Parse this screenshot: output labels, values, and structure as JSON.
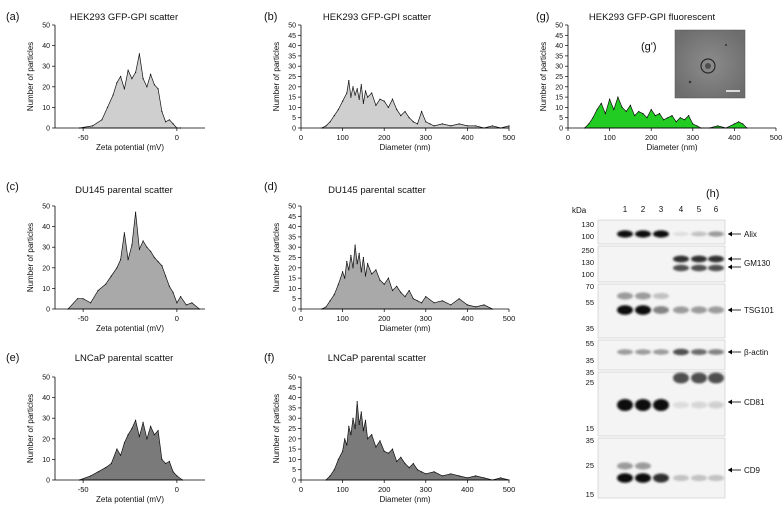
{
  "colors": {
    "light": "#cfcfcf",
    "medium": "#a9a9a9",
    "dark": "#7a7a7a",
    "green": "#22cc22",
    "line": "#111111"
  },
  "panels": {
    "a": {
      "letter": "(a)",
      "title": "HEK293 GFP-GPI scatter"
    },
    "b": {
      "letter": "(b)",
      "title": "HEK293 GFP-GPI scatter"
    },
    "c": {
      "letter": "(c)",
      "title": "DU145 parental scatter"
    },
    "d": {
      "letter": "(d)",
      "title": "DU145 parental scatter"
    },
    "e": {
      "letter": "(e)",
      "title": "LNCaP parental scatter"
    },
    "f": {
      "letter": "(f)",
      "title": "LNCaP parental scatter"
    },
    "g": {
      "letter": "(g)",
      "title": "HEK293 GFP-GPI fluorescent",
      "inset_label": "(g')"
    },
    "h": {
      "letter": "(h)"
    }
  },
  "chart_data": [
    {
      "id": "a",
      "type": "area",
      "title": "HEK293 GFP-GPI scatter",
      "xlabel": "Zeta potential (mV)",
      "ylabel": "Number of particles",
      "xlim": [
        -65,
        15
      ],
      "ylim": [
        0,
        50
      ],
      "xticks": [
        -50,
        0
      ],
      "yticks": [
        0,
        10,
        20,
        30,
        40,
        50
      ],
      "x": [
        -52,
        -45,
        -40,
        -37,
        -34,
        -32,
        -30,
        -28,
        -26,
        -24,
        -22,
        -20,
        -18,
        -16,
        -14,
        -12,
        -10,
        -8,
        -6,
        -4,
        -2,
        0,
        2
      ],
      "y": [
        0,
        1,
        4,
        10,
        16,
        22,
        25,
        19,
        28,
        24,
        27,
        36,
        24,
        20,
        26,
        21,
        19,
        8,
        3,
        4,
        2,
        0,
        0
      ]
    },
    {
      "id": "b",
      "type": "area",
      "title": "HEK293 GFP-GPI scatter",
      "xlabel": "Diameter (nm)",
      "ylabel": "Number of particles",
      "xlim": [
        0,
        500
      ],
      "ylim": [
        0,
        50
      ],
      "xticks": [
        0,
        100,
        200,
        300,
        400,
        500
      ],
      "yticks": [
        0,
        5,
        10,
        15,
        20,
        25,
        30,
        35,
        40,
        45,
        50
      ],
      "x": [
        50,
        60,
        70,
        80,
        90,
        100,
        110,
        115,
        120,
        125,
        130,
        135,
        140,
        145,
        150,
        155,
        160,
        170,
        180,
        190,
        200,
        210,
        220,
        230,
        240,
        250,
        260,
        270,
        280,
        290,
        300,
        310,
        320,
        340,
        360,
        380,
        400,
        420,
        440,
        460,
        480,
        500
      ],
      "y": [
        0,
        1,
        3,
        6,
        9,
        13,
        17,
        23,
        15,
        20,
        16,
        19,
        14,
        21,
        12,
        18,
        15,
        17,
        11,
        14,
        13,
        10,
        14,
        9,
        6,
        8,
        5,
        3,
        2,
        8,
        3,
        2,
        1,
        2,
        1,
        2,
        1,
        1,
        0,
        1,
        0,
        1
      ]
    },
    {
      "id": "c",
      "type": "area",
      "title": "DU145 parental scatter",
      "xlabel": "Zeta potential (mV)",
      "ylabel": "Number of particles",
      "xlim": [
        -65,
        15
      ],
      "ylim": [
        0,
        50
      ],
      "xticks": [
        -50,
        0
      ],
      "yticks": [
        0,
        10,
        20,
        30,
        40,
        50
      ],
      "x": [
        -58,
        -53,
        -50,
        -46,
        -42,
        -38,
        -35,
        -32,
        -30,
        -28,
        -26,
        -24,
        -22,
        -20,
        -18,
        -16,
        -14,
        -12,
        -10,
        -8,
        -6,
        -4,
        -2,
        0,
        2,
        5,
        8,
        12
      ],
      "y": [
        0,
        5,
        5,
        3,
        9,
        12,
        16,
        20,
        24,
        37,
        24,
        31,
        47,
        29,
        33,
        30,
        28,
        25,
        23,
        21,
        16,
        11,
        8,
        3,
        6,
        2,
        3,
        0
      ]
    },
    {
      "id": "d",
      "type": "area",
      "title": "DU145 parental scatter",
      "xlabel": "Diameter (nm)",
      "ylabel": "Number of particles",
      "xlim": [
        0,
        500
      ],
      "ylim": [
        0,
        50
      ],
      "xticks": [
        0,
        100,
        200,
        300,
        400,
        500
      ],
      "yticks": [
        0,
        5,
        10,
        15,
        20,
        25,
        30,
        35,
        40,
        45,
        50
      ],
      "x": [
        50,
        60,
        70,
        80,
        90,
        100,
        105,
        110,
        115,
        120,
        125,
        130,
        135,
        140,
        145,
        150,
        155,
        160,
        170,
        180,
        190,
        200,
        210,
        220,
        230,
        240,
        250,
        260,
        270,
        280,
        290,
        300,
        320,
        340,
        360,
        380,
        400,
        420,
        440,
        460
      ],
      "y": [
        0,
        1,
        4,
        7,
        12,
        18,
        15,
        23,
        19,
        26,
        20,
        31,
        22,
        27,
        18,
        25,
        16,
        22,
        17,
        19,
        14,
        12,
        15,
        9,
        11,
        8,
        6,
        9,
        5,
        4,
        3,
        6,
        3,
        4,
        2,
        5,
        2,
        1,
        2,
        0
      ]
    },
    {
      "id": "e",
      "type": "area",
      "title": "LNCaP parental scatter",
      "xlabel": "Zeta potential (mV)",
      "ylabel": "Number of particles",
      "xlim": [
        -65,
        15
      ],
      "ylim": [
        0,
        50
      ],
      "xticks": [
        -50,
        0
      ],
      "yticks": [
        0,
        10,
        20,
        30,
        40,
        50
      ],
      "x": [
        -52,
        -46,
        -42,
        -38,
        -35,
        -32,
        -30,
        -28,
        -26,
        -24,
        -22,
        -20,
        -18,
        -16,
        -14,
        -12,
        -10,
        -8,
        -6,
        -4,
        -2,
        0,
        3
      ],
      "y": [
        0,
        2,
        4,
        6,
        8,
        15,
        12,
        18,
        22,
        25,
        29,
        21,
        28,
        20,
        26,
        22,
        24,
        10,
        8,
        9,
        4,
        2,
        0
      ]
    },
    {
      "id": "f",
      "type": "area",
      "title": "LNCaP parental scatter",
      "xlabel": "Diameter (nm)",
      "ylabel": "Number of particles",
      "xlim": [
        0,
        500
      ],
      "ylim": [
        0,
        50
      ],
      "xticks": [
        0,
        100,
        200,
        300,
        400,
        500
      ],
      "yticks": [
        0,
        5,
        10,
        15,
        20,
        25,
        30,
        35,
        40,
        45,
        50
      ],
      "x": [
        60,
        70,
        80,
        90,
        100,
        105,
        110,
        115,
        120,
        125,
        130,
        135,
        140,
        145,
        150,
        155,
        160,
        170,
        180,
        190,
        200,
        210,
        220,
        230,
        240,
        250,
        260,
        270,
        280,
        290,
        300,
        320,
        340,
        360,
        380,
        400,
        420,
        440,
        460,
        480,
        500
      ],
      "y": [
        0,
        2,
        5,
        10,
        14,
        20,
        17,
        26,
        22,
        30,
        25,
        38,
        27,
        33,
        24,
        29,
        20,
        22,
        16,
        19,
        14,
        13,
        15,
        9,
        11,
        8,
        6,
        8,
        5,
        4,
        3,
        4,
        2,
        3,
        2,
        1,
        2,
        1,
        0,
        1,
        0
      ]
    },
    {
      "id": "g",
      "type": "area",
      "title": "HEK293 GFP-GPI fluorescent",
      "xlabel": "Diameter (nm)",
      "ylabel": "Number of particles",
      "xlim": [
        0,
        500
      ],
      "ylim": [
        0,
        50
      ],
      "xticks": [
        0,
        100,
        200,
        300,
        400,
        500
      ],
      "yticks": [
        0,
        5,
        10,
        15,
        20,
        25,
        30,
        35,
        40,
        45,
        50
      ],
      "x": [
        40,
        50,
        60,
        70,
        80,
        90,
        100,
        110,
        120,
        130,
        140,
        150,
        160,
        170,
        180,
        190,
        200,
        210,
        220,
        230,
        240,
        250,
        260,
        270,
        280,
        290,
        300,
        310,
        320,
        340,
        360,
        380,
        400,
        410,
        420,
        430
      ],
      "y": [
        0,
        2,
        5,
        9,
        12,
        7,
        14,
        9,
        15,
        10,
        8,
        11,
        6,
        8,
        7,
        5,
        9,
        6,
        7,
        4,
        5,
        6,
        3,
        5,
        4,
        6,
        2,
        1,
        0,
        0,
        1,
        0,
        2,
        3,
        2,
        0
      ]
    }
  ],
  "western": {
    "kda_label": "kDa",
    "lanes": [
      "1",
      "2",
      "3",
      "4",
      "5",
      "6"
    ],
    "blots": [
      {
        "label": "Alix",
        "markers": [
          "130",
          "100"
        ]
      },
      {
        "label": "GM130",
        "markers": [
          "250",
          "130",
          "100"
        ]
      },
      {
        "label": "TSG101",
        "markers": [
          "70",
          "55",
          "35"
        ]
      },
      {
        "label": "β-actin",
        "markers": [
          "55",
          "35"
        ]
      },
      {
        "label": "CD81",
        "markers": [
          "35",
          "25",
          "15"
        ]
      },
      {
        "label": "CD9",
        "markers": [
          "35",
          "25",
          "15"
        ]
      }
    ]
  }
}
